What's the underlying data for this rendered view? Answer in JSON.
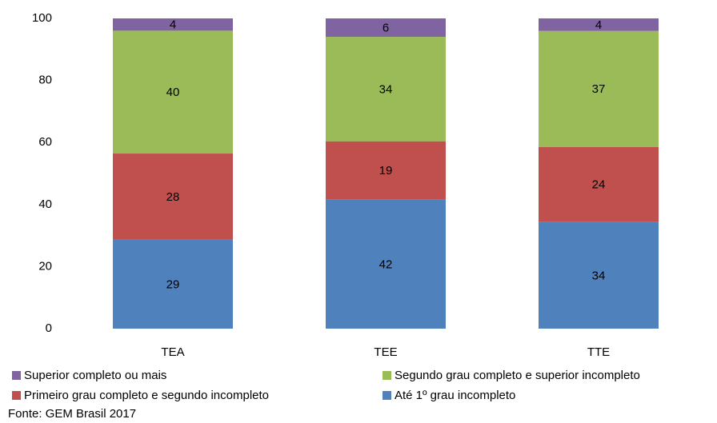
{
  "chart_data": {
    "type": "bar",
    "stacked": "percent",
    "categories": [
      "TEA",
      "TEE",
      "TTE"
    ],
    "series": [
      {
        "name": "Até 1º grau incompleto",
        "color": "#4f81bd",
        "values": [
          29,
          42,
          34
        ]
      },
      {
        "name": "Primeiro grau completo e segundo incompleto",
        "color": "#c0504d",
        "values": [
          28,
          19,
          24
        ]
      },
      {
        "name": "Segundo grau completo e superior incompleto",
        "color": "#9bbb59",
        "values": [
          40,
          34,
          37
        ]
      },
      {
        "name": "Superior completo ou mais",
        "color": "#8064a2",
        "values": [
          4,
          6,
          4
        ]
      }
    ],
    "ylim": [
      0,
      100
    ],
    "yticks": [
      0,
      20,
      40,
      60,
      80,
      100
    ],
    "grid": false,
    "source": "Fonte: GEM Brasil 2017"
  }
}
